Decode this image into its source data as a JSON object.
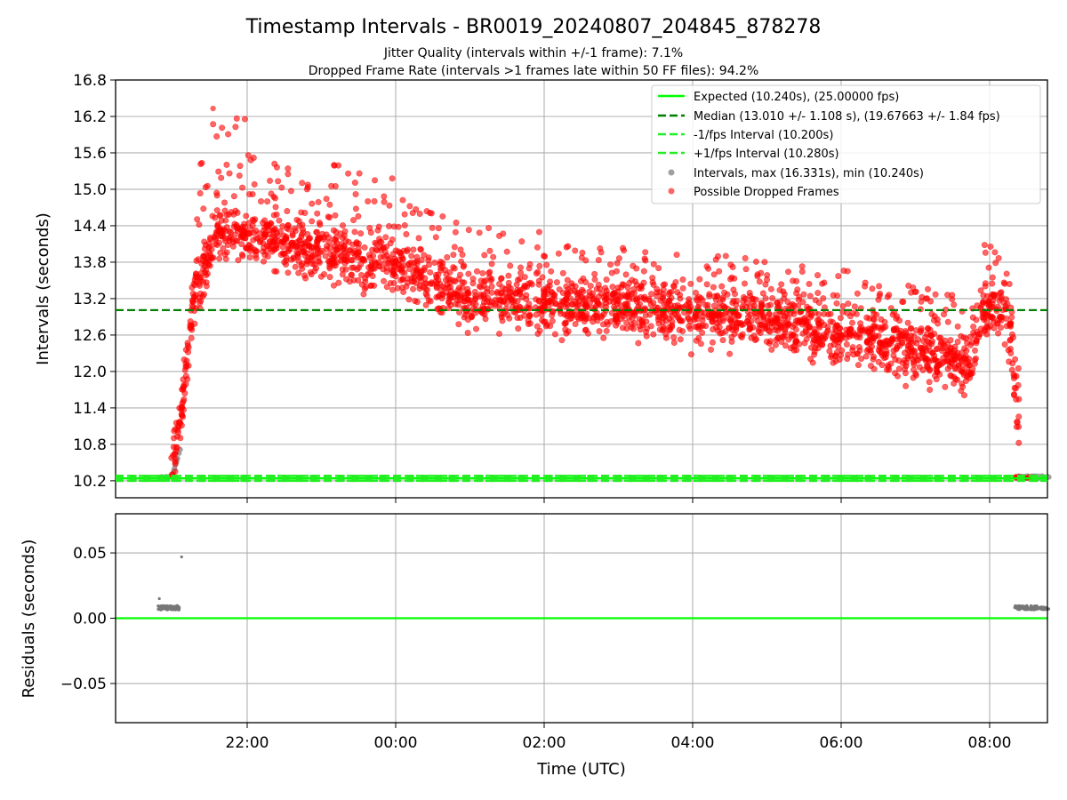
{
  "chart_data": [
    {
      "type": "scatter",
      "title": "Timestamp Intervals - BR0019_20240807_204845_878278",
      "subtitle_lines": [
        "Jitter Quality (intervals within +/-1 frame): 7.1%",
        "Dropped Frame Rate (intervals >1 frames late within 50 FF files): 94.2%"
      ],
      "xlabel": "",
      "ylabel": "Intervals (seconds)",
      "ylim": [
        9.92,
        16.8
      ],
      "xlim": [
        "2024-08-07 20:12",
        "2024-08-08 08:48"
      ],
      "yticks": [
        "10.2",
        "10.8",
        "11.4",
        "12.0",
        "12.6",
        "13.2",
        "13.8",
        "14.4",
        "15.0",
        "15.6",
        "16.2",
        "16.8"
      ],
      "grid": true,
      "legend_position": "upper-right",
      "legend": [
        "Expected (10.240s), (25.00000 fps)",
        "Median (13.010 +/- 1.108 s), (19.67663 +/- 1.84 fps)",
        "-1/fps Interval (10.200s)",
        "+1/fps Interval (10.280s)",
        "Intervals, max (16.331s), min (10.240s)",
        "Possible Dropped Frames"
      ],
      "reference_lines": {
        "expected": 10.24,
        "median": 13.01,
        "minus_one_fps": 10.2,
        "plus_one_fps": 10.28
      },
      "series_ranges": {
        "max_interval": 16.331,
        "min_interval": 10.24
      },
      "dropped_frames_trend": {
        "description_hours_utc": [
          20.98,
          21.1,
          21.3,
          21.6,
          22.0,
          23.0,
          24.0,
          25.0,
          27.0,
          29.0,
          30.0,
          31.0,
          31.75,
          31.9,
          32.2,
          32.35,
          32.4
        ],
        "median_values": [
          10.55,
          11.2,
          13.3,
          14.3,
          14.2,
          13.95,
          13.75,
          13.2,
          13.05,
          12.85,
          12.6,
          12.3,
          12.1,
          13.0,
          13.1,
          12.0,
          11.2
        ]
      },
      "colors": {
        "expected": "#00ff00",
        "median": "#008000",
        "fps_interval": "#22ee22",
        "intervals": "#a0a0a0",
        "dropped": "#ff0000"
      }
    },
    {
      "type": "scatter",
      "title": "",
      "xlabel": "Time (UTC)",
      "ylabel": "Residuals (seconds)",
      "ylim": [
        -0.08,
        0.08
      ],
      "yticks": [
        "−0.05",
        "0.00",
        "0.05"
      ],
      "xticks": [
        "22:00",
        "00:00",
        "02:00",
        "04:00",
        "06:00",
        "08:00"
      ],
      "grid": true,
      "zero_line_color": "#00ff00",
      "clusters": [
        {
          "start": "20:48",
          "end": "21:06",
          "value": 0.008
        },
        {
          "start": "08:20",
          "end": "08:48",
          "value": 0.008
        }
      ],
      "outliers": [
        {
          "time": "20:49",
          "value": 0.015
        },
        {
          "time": "21:07",
          "value": 0.047
        }
      ]
    }
  ]
}
